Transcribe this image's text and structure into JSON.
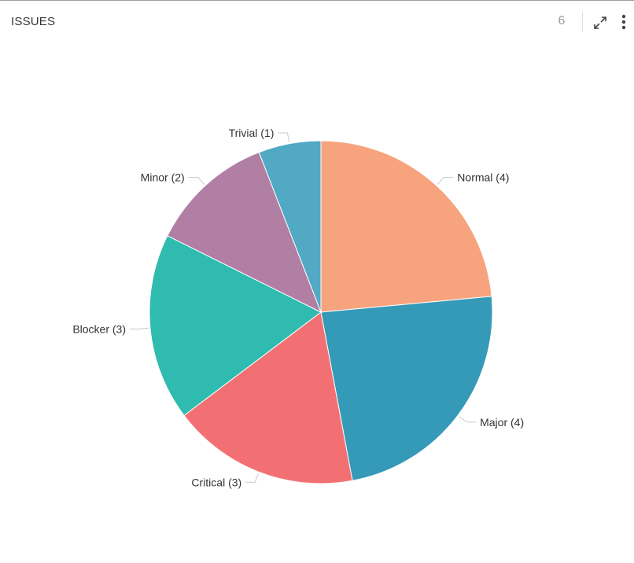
{
  "widget": {
    "title": "ISSUES",
    "count": "6",
    "expand_icon": "expand-diagonal-icon",
    "menu_icon": "more-vertical-icon"
  },
  "chart_data": {
    "type": "pie",
    "start_angle_deg": 0,
    "direction": "clockwise",
    "slices": [
      {
        "label": "Normal (4)",
        "value": 4,
        "color": "#f7a37e"
      },
      {
        "label": "Major (4)",
        "value": 4,
        "color": "#3599b8"
      },
      {
        "label": "Critical (3)",
        "value": 3,
        "color": "#f27073"
      },
      {
        "label": "Blocker (3)",
        "value": 3,
        "color": "#30bbb0"
      },
      {
        "label": "Minor (2)",
        "value": 2,
        "color": "#b17ea4"
      },
      {
        "label": "Trivial (1)",
        "value": 1,
        "color": "#51a9c4"
      }
    ],
    "legend": "none"
  }
}
